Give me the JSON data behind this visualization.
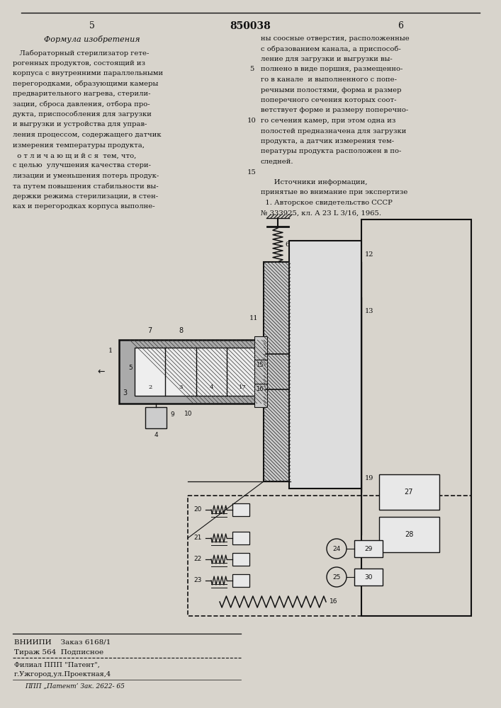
{
  "page_color": "#d8d4cc",
  "text_color": "#111111",
  "title_number": "850038",
  "page_left": "5",
  "page_right": "6",
  "left_col_title": "Формула изобретения",
  "left_col_text": [
    "   Лабораторный стерилизатор гете-",
    "рогенных продуктов, состоящий из",
    "корпуса с внутренними параллельными",
    "перегородками, образующими камеры",
    "предварительного нагрева, стерили-",
    "зации, сброса давления, отбора про-",
    "дукта, приспособления для загрузки",
    "и выгрузки и устройства для управ-",
    "ления процессом, содержащего датчик",
    "измерения температуры продукта,",
    "  о т л и ч а ю щ и й с я  тем, что,",
    "с целью  улучшения качества стери-",
    "лизации и уменьшения потерь продук-",
    "та путем повышения стабильности вы-",
    "держки режима стерилизации, в стен-",
    "ках и перегородках корпуса выполне-"
  ],
  "right_col_text": [
    "ны соосные отверстия, расположенные",
    "с образованием канала, а приспособ-",
    "ление для загрузки и выгрузки вы-",
    "полнено в виде поршня, размещенно-",
    "го в канале  и выполненного с попе-",
    "речными полостями, форма и размер",
    "поперечного сечения которых соот-",
    "ветствует форме и размеру поперечно-",
    "го сечения камер, при этом одна из",
    "полостей предназначена для загрузки",
    "продукта, а датчик измерения тем-",
    "пературы продукта расположен в по-",
    "следней.",
    "",
    "      Источники информации,",
    "принятые во внимание при экспертизе",
    "  1. Авторское свидетельство СССР",
    "№ 333925, кл. А 23 L 3/16, 1965."
  ],
  "footer_text1": "ВНИИПИ    Заказ 6168/1",
  "footer_text2": "Тираж 564  Подписное",
  "footer_text3": "Филиал ППП \"Патент\",",
  "footer_text4": "г.Ужгород,ул.Проектная,4",
  "footer_text5": "ППП „Патент’ Зак. 2622- 65"
}
